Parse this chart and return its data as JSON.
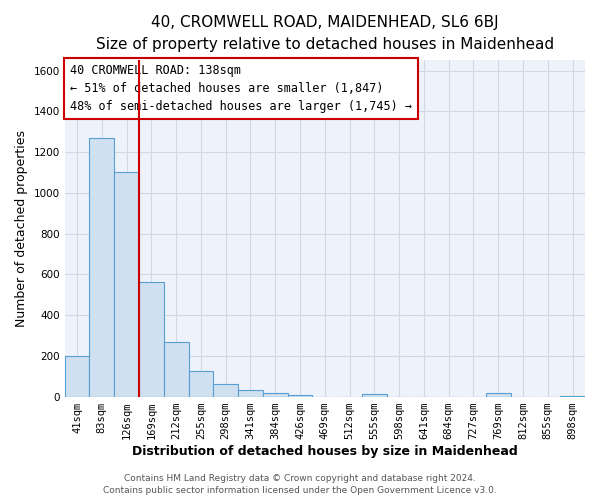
{
  "title": "40, CROMWELL ROAD, MAIDENHEAD, SL6 6BJ",
  "subtitle": "Size of property relative to detached houses in Maidenhead",
  "xlabel": "Distribution of detached houses by size in Maidenhead",
  "ylabel": "Number of detached properties",
  "footer_lines": [
    "Contains HM Land Registry data © Crown copyright and database right 2024.",
    "Contains public sector information licensed under the Open Government Licence v3.0."
  ],
  "bin_labels": [
    "41sqm",
    "83sqm",
    "126sqm",
    "169sqm",
    "212sqm",
    "255sqm",
    "298sqm",
    "341sqm",
    "384sqm",
    "426sqm",
    "469sqm",
    "512sqm",
    "555sqm",
    "598sqm",
    "641sqm",
    "684sqm",
    "727sqm",
    "769sqm",
    "812sqm",
    "855sqm",
    "898sqm"
  ],
  "bar_heights": [
    200,
    1270,
    1100,
    560,
    270,
    125,
    60,
    30,
    20,
    10,
    0,
    0,
    15,
    0,
    0,
    0,
    0,
    20,
    0,
    0,
    5
  ],
  "bar_color": "#cfe0f0",
  "bar_edge_color": "#5a9fd4",
  "ylim": [
    0,
    1650
  ],
  "yticks": [
    0,
    200,
    400,
    600,
    800,
    1000,
    1200,
    1400,
    1600
  ],
  "vline_color": "#cc0000",
  "annotation_title": "40 CROMWELL ROAD: 138sqm",
  "annotation_line1": "← 51% of detached houses are smaller (1,847)",
  "annotation_line2": "48% of semi-detached houses are larger (1,745) →",
  "background_color": "#ffffff",
  "plot_bg_color": "#eef2fa",
  "grid_color": "#d0d8e8",
  "title_fontsize": 11,
  "subtitle_fontsize": 9.5,
  "axis_label_fontsize": 9,
  "tick_fontsize": 7.5,
  "annotation_fontsize": 8.5,
  "footer_fontsize": 6.5
}
